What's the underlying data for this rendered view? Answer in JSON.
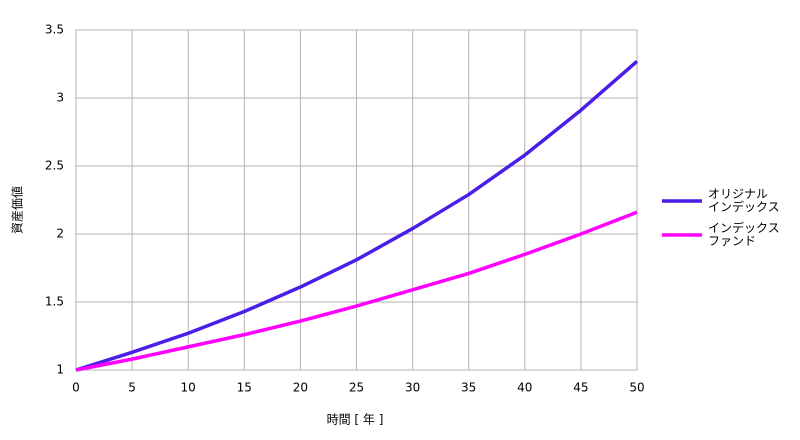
{
  "chart_data": {
    "type": "line",
    "x_label": "時間 [ 年 ]",
    "y_label": "資産価値",
    "x": [
      0,
      5,
      10,
      15,
      20,
      25,
      30,
      35,
      40,
      45,
      50
    ],
    "series": [
      {
        "name": "オリジナル\nインデックス",
        "color": "#4a1ee8",
        "values": [
          1,
          1.13,
          1.27,
          1.43,
          1.61,
          1.81,
          2.04,
          2.29,
          2.58,
          2.91,
          3.27
        ]
      },
      {
        "name": "インデックス\nファンド",
        "color": "#ff00ff",
        "values": [
          1,
          1.08,
          1.17,
          1.26,
          1.36,
          1.47,
          1.59,
          1.71,
          1.85,
          2.0,
          2.16
        ]
      }
    ],
    "xlim": [
      0,
      50
    ],
    "xticks": [
      0,
      5,
      10,
      15,
      20,
      25,
      30,
      35,
      40,
      45,
      50
    ],
    "ylim": [
      1,
      3.5
    ],
    "yticks": [
      1,
      1.5,
      2,
      2.5,
      3,
      3.5
    ],
    "grid": true,
    "legend": "right"
  }
}
